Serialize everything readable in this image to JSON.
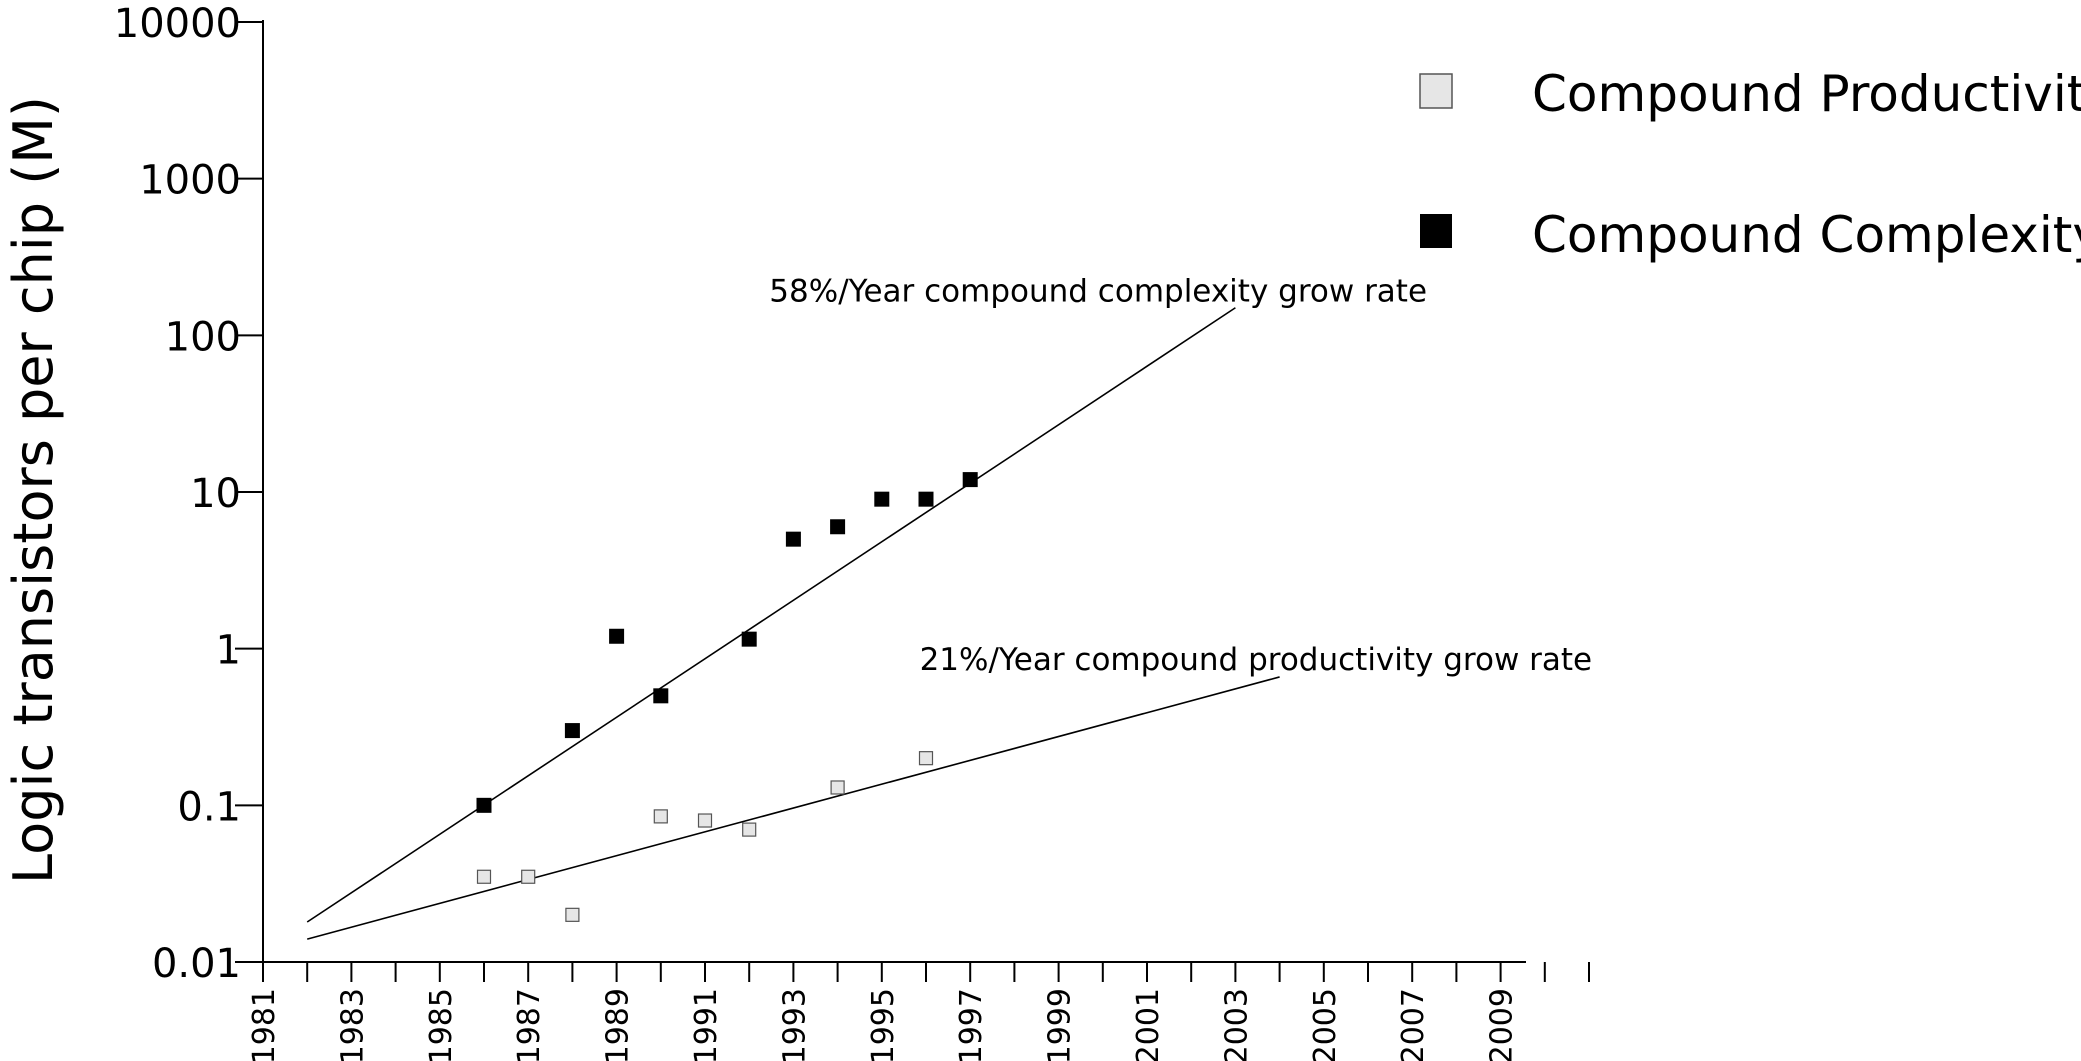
{
  "chart_data": {
    "type": "scatter",
    "title": "",
    "xlabel": "",
    "ylabel": "Logic transistors per chip (M)",
    "yscale": "log",
    "ylim": [
      0.01,
      10000
    ],
    "xlim": [
      1981,
      2011
    ],
    "ytick_labels": [
      "10000",
      "1000",
      "100",
      "10",
      "1",
      "0.1",
      "0.01"
    ],
    "ytick_values": [
      10000,
      1000,
      100,
      10,
      1,
      0.1,
      0.01
    ],
    "xtick_labels": [
      "1981",
      "1983",
      "1985",
      "1987",
      "1989",
      "1991",
      "1993",
      "1995",
      "1997",
      "1999",
      "2001",
      "2003",
      "2005",
      "2007",
      "2009"
    ],
    "grid": false,
    "legend_position": "top-right",
    "series": [
      {
        "name": "Compound Productivity",
        "marker": "hollow-square",
        "color": "#e6e6e6",
        "points": [
          {
            "x": 1986,
            "y": 0.035
          },
          {
            "x": 1987,
            "y": 0.035
          },
          {
            "x": 1988,
            "y": 0.02
          },
          {
            "x": 1990,
            "y": 0.085
          },
          {
            "x": 1991,
            "y": 0.08
          },
          {
            "x": 1992,
            "y": 0.07
          },
          {
            "x": 1994,
            "y": 0.13
          },
          {
            "x": 1996,
            "y": 0.2
          }
        ]
      },
      {
        "name": "Compound Complexity",
        "marker": "filled-square",
        "color": "#000000",
        "points": [
          {
            "x": 1986,
            "y": 0.1
          },
          {
            "x": 1988,
            "y": 0.3
          },
          {
            "x": 1989,
            "y": 1.2
          },
          {
            "x": 1990,
            "y": 0.5
          },
          {
            "x": 1992,
            "y": 1.15
          },
          {
            "x": 1993,
            "y": 5
          },
          {
            "x": 1994,
            "y": 6
          },
          {
            "x": 1995,
            "y": 9
          },
          {
            "x": 1996,
            "y": 9
          },
          {
            "x": 1997,
            "y": 12
          }
        ]
      }
    ],
    "trendlines": [
      {
        "name": "complexity-trend",
        "x": [
          1982,
          2003
        ],
        "y": [
          0.018,
          150
        ]
      },
      {
        "name": "productivity-trend",
        "x": [
          1982,
          2004
        ],
        "y": [
          0.014,
          0.66
        ]
      }
    ],
    "annotations": [
      {
        "text": "58%/Year compound complexity grow rate",
        "x": 1992.5,
        "y": 150
      },
      {
        "text": "21%/Year compound productivity grow rate",
        "x": 1995.9,
        "y": 0.75
      }
    ]
  }
}
